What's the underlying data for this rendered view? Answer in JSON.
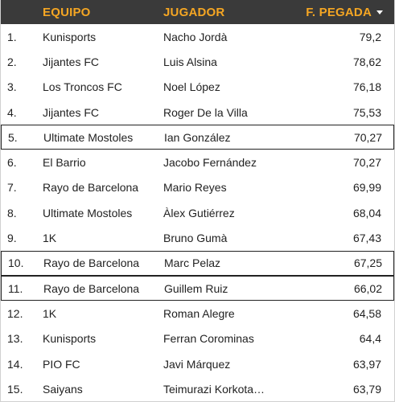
{
  "header": {
    "rank_label": "",
    "team_label": "EQUIPO",
    "player_label": "JUGADOR",
    "value_label": "F. PEGADA",
    "sort_icon": "sort-desc-icon"
  },
  "colors": {
    "header_bg": "#3a3a3a",
    "header_text": "#f5a623"
  },
  "rows": [
    {
      "rank": "1.",
      "team": "Kunisports",
      "player": "Nacho Jordà",
      "value": "79,2"
    },
    {
      "rank": "2.",
      "team": "Jijantes FC",
      "player": "Luis Alsina",
      "value": "78,62"
    },
    {
      "rank": "3.",
      "team": "Los Troncos FC",
      "player": "Noel López",
      "value": "76,18"
    },
    {
      "rank": "4.",
      "team": "Jijantes FC",
      "player": "Roger De la Villa",
      "value": "75,53"
    },
    {
      "rank": "5.",
      "team": "Ultimate Mostoles",
      "player": "Ian González",
      "value": "70,27"
    },
    {
      "rank": "6.",
      "team": "El Barrio",
      "player": "Jacobo Fernández",
      "value": "70,27"
    },
    {
      "rank": "7.",
      "team": "Rayo de Barcelona",
      "player": "Mario Reyes",
      "value": "69,99"
    },
    {
      "rank": "8.",
      "team": "Ultimate Mostoles",
      "player": "Àlex Gutiérrez",
      "value": "68,04"
    },
    {
      "rank": "9.",
      "team": "1K",
      "player": "Bruno Gumà",
      "value": "67,43"
    },
    {
      "rank": "10.",
      "team": "Rayo de Barcelona",
      "player": "Marc Pelaz",
      "value": "67,25"
    },
    {
      "rank": "11.",
      "team": "Rayo de Barcelona",
      "player": "Guillem Ruiz",
      "value": "66,02"
    },
    {
      "rank": "12.",
      "team": "1K",
      "player": "Roman Alegre",
      "value": "64,58"
    },
    {
      "rank": "13.",
      "team": "Kunisports",
      "player": "Ferran Corominas",
      "value": "64,4"
    },
    {
      "rank": "14.",
      "team": "PIO FC",
      "player": "Javi Márquez",
      "value": "63,97"
    },
    {
      "rank": "15.",
      "team": "Saiyans",
      "player": "Teimurazi Korkota…",
      "value": "63,79"
    }
  ]
}
